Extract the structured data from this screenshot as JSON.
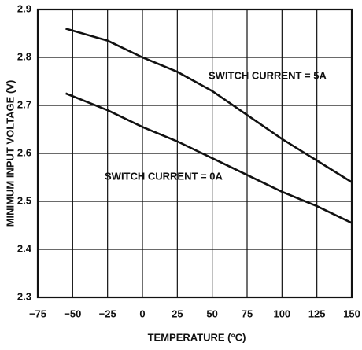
{
  "chart_data": {
    "type": "line",
    "xlabel": "TEMPERATURE (°C)",
    "ylabel": "MINIMUM INPUT VOLTAGE (V)",
    "x": [
      -55,
      -25,
      0,
      25,
      50,
      75,
      100,
      125,
      150
    ],
    "series": [
      {
        "name": "SWITCH CURRENT = 5A",
        "color": "#111111",
        "values": [
          2.86,
          2.835,
          2.8,
          2.77,
          2.73,
          2.68,
          2.63,
          2.585,
          2.54
        ]
      },
      {
        "name": "SWITCH CURRENT = 0A",
        "color": "#111111",
        "values": [
          2.725,
          2.69,
          2.655,
          2.625,
          2.59,
          2.555,
          2.52,
          2.49,
          2.455
        ]
      }
    ],
    "xlim": [
      -75,
      150
    ],
    "xticks": [
      {
        "value": -75,
        "label": "−75"
      },
      {
        "value": -50,
        "label": "−50"
      },
      {
        "value": -25,
        "label": "−25"
      },
      0,
      25,
      50,
      75,
      100,
      125,
      150
    ],
    "ylim": [
      2.3,
      2.9
    ],
    "yticks": [
      2.3,
      2.4,
      2.5,
      2.6,
      2.7,
      2.8,
      2.9
    ],
    "grid": true
  }
}
